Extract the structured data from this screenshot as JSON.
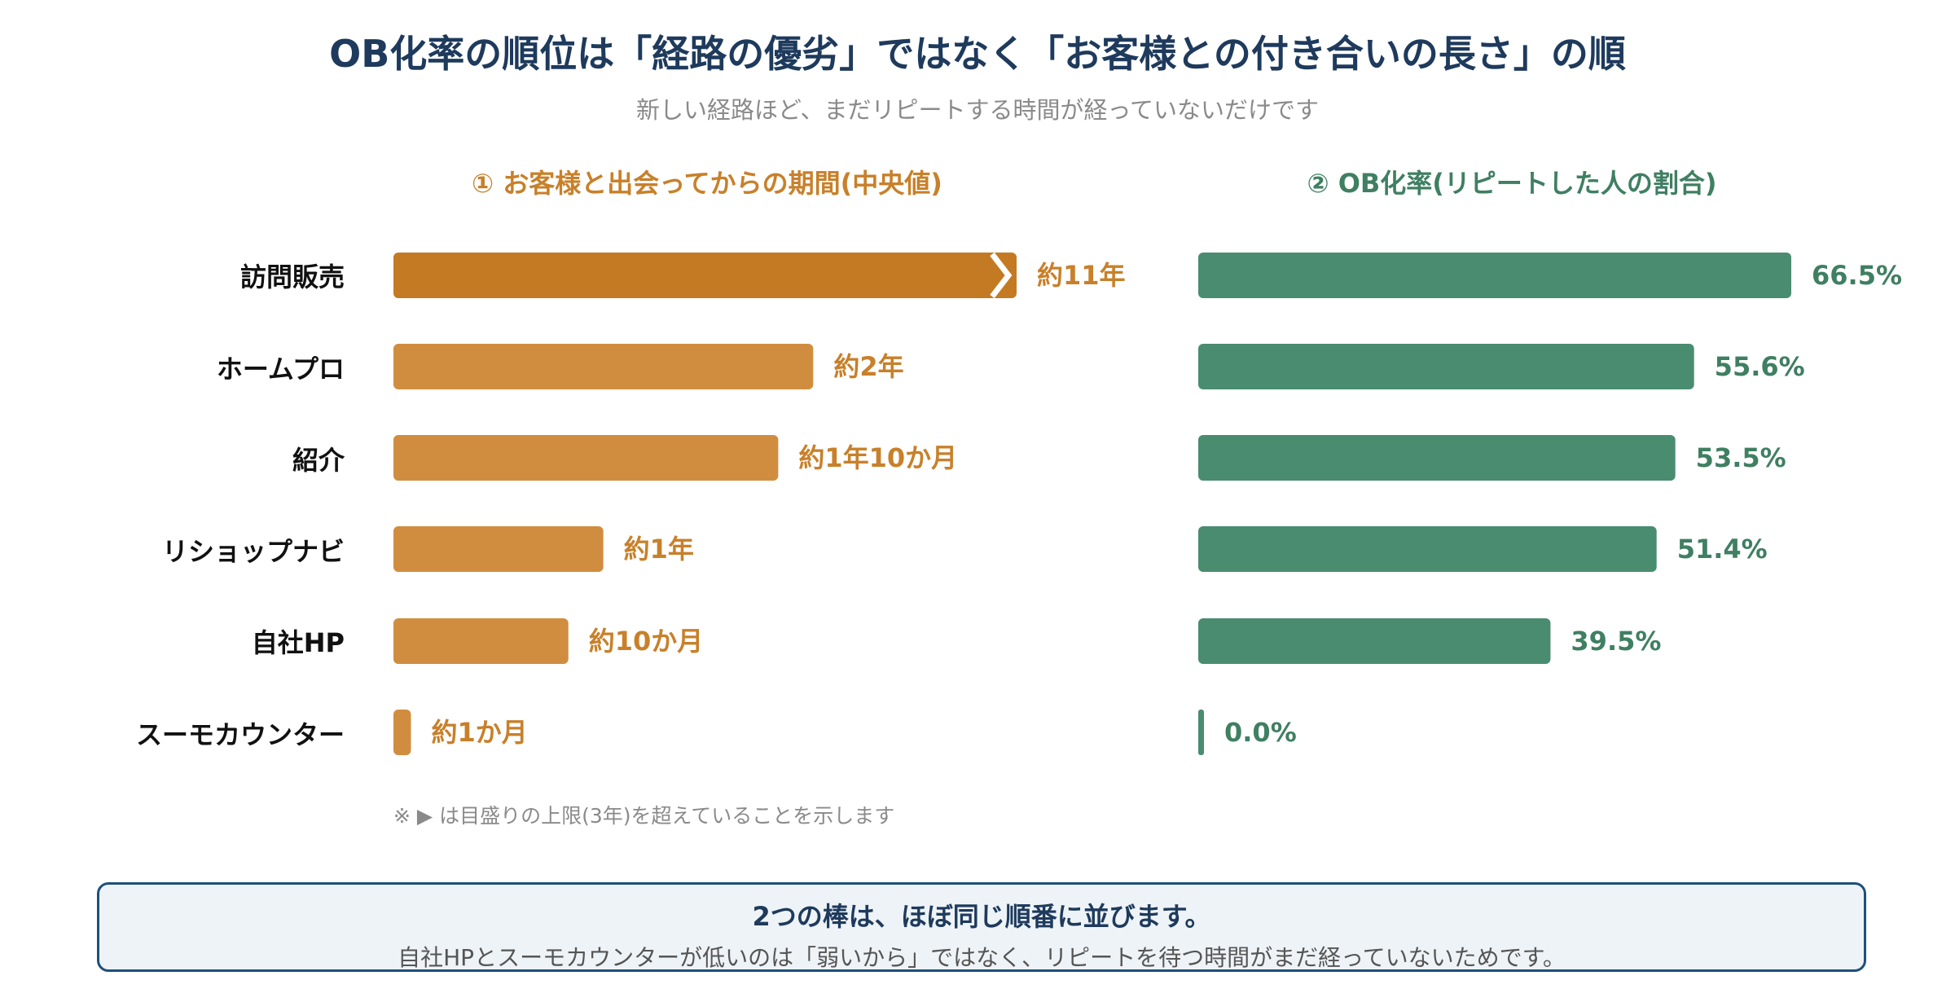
{
  "title": "OB化率の順位は「経路の優劣」ではなく「お客様との付き合いの長さ」の順",
  "subtitle": "新しい経路ほど、まだリピートする時間が経っていないだけです",
  "colors": {
    "left_dark": "#c47a22",
    "left_bar": "#d08d40",
    "left_label": "#c8802a",
    "right_bar": "#4a8c70",
    "right_label": "#3f7f62"
  },
  "footnote": "※ ▶ は目盛りの上限(3年)を超えていることを示します",
  "summary": {
    "heading": "2つの棒は、ほぼ同じ順番に並びます。",
    "body": "自社HPとスーモカウンターが低いのは「弱いから」ではなく、リピートを待つ時間がまだ経っていないためです。"
  },
  "chart_data": [
    {
      "type": "bar",
      "orientation": "horizontal",
      "title": "① お客様と出会ってからの期間(中央値)",
      "categories": [
        "訪問販売",
        "ホームプロ",
        "紹介",
        "リショップナビ",
        "自社HP",
        "スーモカウンター"
      ],
      "values_months": [
        132,
        24,
        22,
        12,
        10,
        1
      ],
      "value_labels": [
        "約11年",
        "約2年",
        "約1年10か月",
        "約1年",
        "約10か月",
        "約1か月"
      ],
      "axis_max_months": 36,
      "overflow": [
        true,
        false,
        false,
        false,
        false,
        false
      ],
      "grid": false
    },
    {
      "type": "bar",
      "orientation": "horizontal",
      "title": "② OB化率(リピートした人の割合)",
      "categories": [
        "訪問販売",
        "ホームプロ",
        "紹介",
        "リショップナビ",
        "自社HP",
        "スーモカウンター"
      ],
      "values": [
        66.5,
        55.6,
        53.5,
        51.4,
        39.5,
        0.0
      ],
      "value_labels": [
        "66.5%",
        "55.6%",
        "53.5%",
        "51.4%",
        "39.5%",
        "0.0%"
      ],
      "axis_max": 66.5,
      "grid": false
    }
  ]
}
